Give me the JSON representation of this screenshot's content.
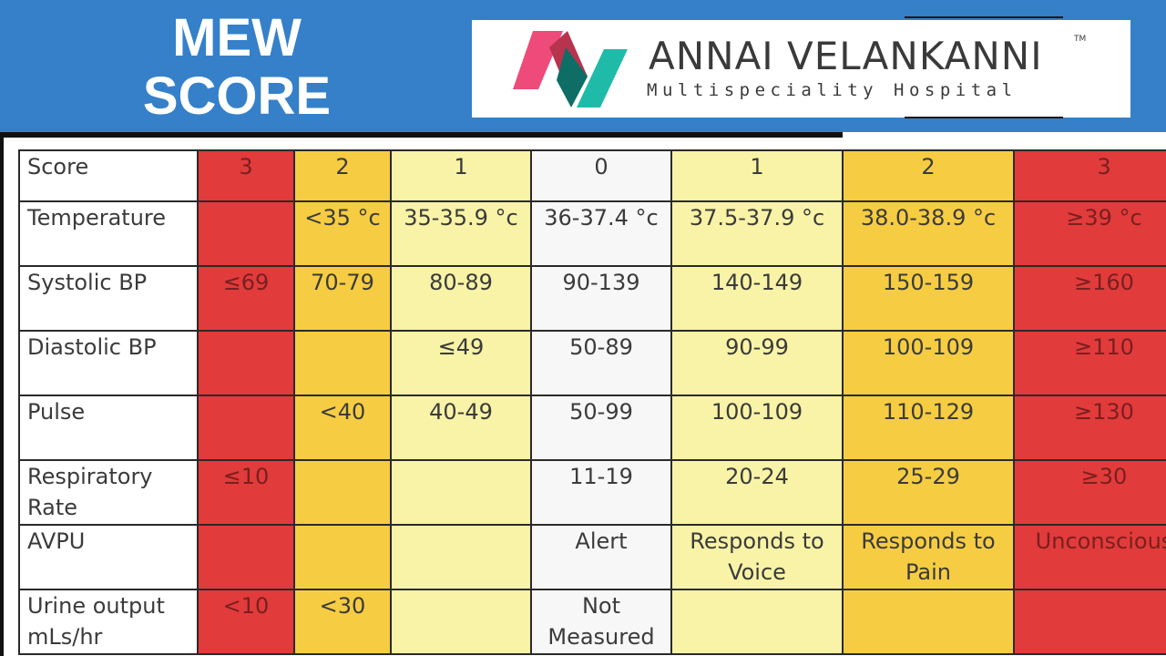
{
  "header": {
    "title_line1": "MEW",
    "title_line2": "SCORE"
  },
  "logo": {
    "name": "ANNAI VELANKANNI",
    "tm": "TM",
    "subtitle": "Multispeciality Hospital",
    "colors": {
      "pink": "#ee4a7a",
      "teal": "#20bba8",
      "dark_teal": "#0e6e66"
    }
  },
  "colors": {
    "background": "#3580c9",
    "red": "#e23b3b",
    "orange": "#f6cd42",
    "yellow": "#f8f3a6",
    "white": "#f7f7f7"
  },
  "table": {
    "header": [
      "Score",
      "3",
      "2",
      "1",
      "0",
      "1",
      "2",
      "3"
    ],
    "rows": [
      {
        "label": "Temperature",
        "cells": [
          "",
          "<35 °c",
          "35-35.9 °c",
          "36-37.4 °c",
          "37.5-37.9 °c",
          "38.0-38.9 °c",
          "≥39 °c"
        ]
      },
      {
        "label": "Systolic BP",
        "cells": [
          "≤69",
          "70-79",
          "80-89",
          "90-139",
          "140-149",
          "150-159",
          "≥160"
        ]
      },
      {
        "label": "Diastolic BP",
        "cells": [
          "",
          "",
          "≤49",
          "50-89",
          "90-99",
          "100-109",
          "≥110"
        ]
      },
      {
        "label": "Pulse",
        "cells": [
          "",
          "<40",
          "40-49",
          "50-99",
          "100-109",
          "110-129",
          "≥130"
        ]
      },
      {
        "label": "Respiratory Rate",
        "cells": [
          "≤10",
          "",
          "",
          "11-19",
          "20-24",
          "25-29",
          "≥30"
        ]
      },
      {
        "label": "AVPU",
        "cells": [
          "",
          "",
          "",
          "Alert",
          "Responds to Voice",
          "Responds to Pain",
          "Unconscious"
        ]
      },
      {
        "label": "Urine output mLs/hr",
        "cells": [
          "<10",
          "<30",
          "",
          "Not Measured",
          "",
          "",
          ""
        ]
      }
    ]
  }
}
